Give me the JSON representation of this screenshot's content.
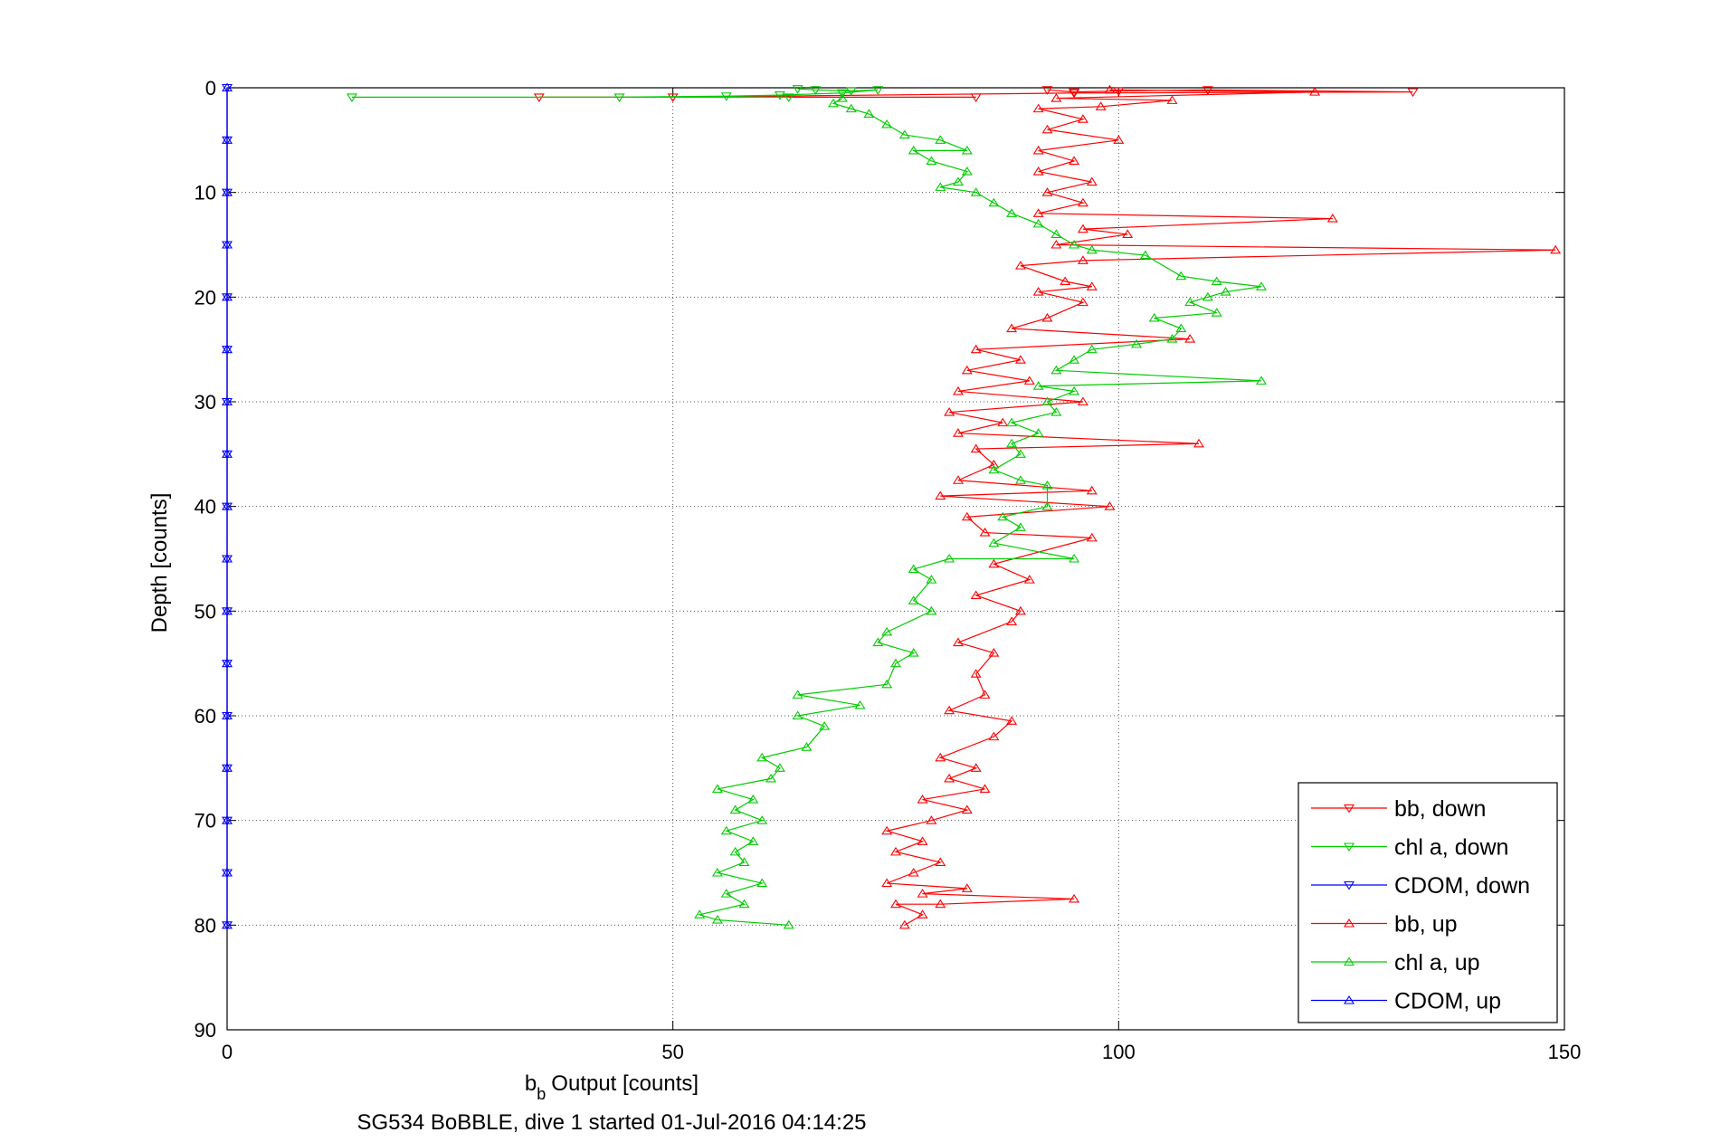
{
  "chart_data": {
    "type": "line",
    "xlabel": "Output [counts]",
    "xlabel_prefix": "b",
    "xlabel_subscript": "b",
    "ylabel": "Depth [counts]",
    "caption": "SG534 BoBBLE, dive 1 started 01-Jul-2016 04:14:25",
    "xlim": [
      0,
      150
    ],
    "ylim": [
      0,
      90
    ],
    "y_reversed": true,
    "grid": true,
    "legend_position": "bottom-right",
    "x_ticks": [
      0,
      50,
      100,
      150
    ],
    "y_ticks": [
      0,
      10,
      20,
      30,
      40,
      50,
      60,
      70,
      80,
      90
    ],
    "series": [
      {
        "name": "bb, down",
        "color": "#ff0000",
        "marker": "triangle-down",
        "points": [
          [
            92,
            0.2
          ],
          [
            95,
            0.4
          ],
          [
            100,
            0.3
          ],
          [
            110,
            0.2
          ],
          [
            133,
            0.4
          ],
          [
            95,
            0.5
          ],
          [
            50,
            0.9
          ],
          [
            35,
            0.9
          ],
          [
            84,
            0.9
          ]
        ]
      },
      {
        "name": "chl a, down",
        "color": "#00cc00",
        "marker": "triangle-down",
        "points": [
          [
            64,
            0.1
          ],
          [
            66,
            0.2
          ],
          [
            70,
            0.3
          ],
          [
            73,
            0.2
          ],
          [
            69,
            0.5
          ],
          [
            62,
            0.7
          ],
          [
            56,
            0.8
          ],
          [
            44,
            0.9
          ],
          [
            14,
            0.9
          ],
          [
            63,
            0.9
          ]
        ]
      },
      {
        "name": "CDOM, down",
        "color": "#0000ff",
        "marker": "triangle-down",
        "points": [
          [
            0,
            0.0
          ],
          [
            0,
            5
          ],
          [
            0,
            10
          ],
          [
            0,
            15
          ],
          [
            0,
            20
          ],
          [
            0,
            25
          ],
          [
            0,
            30
          ],
          [
            0,
            35
          ],
          [
            0,
            40
          ],
          [
            0,
            45
          ],
          [
            0,
            50
          ],
          [
            0,
            55
          ],
          [
            0,
            60
          ],
          [
            0,
            65
          ],
          [
            0,
            70
          ],
          [
            0,
            75
          ],
          [
            0,
            80
          ]
        ]
      },
      {
        "name": "bb, up",
        "color": "#ff0000",
        "marker": "triangle-up",
        "points": [
          [
            76,
            80
          ],
          [
            78,
            79
          ],
          [
            75,
            78
          ],
          [
            80,
            78
          ],
          [
            95,
            77.5
          ],
          [
            78,
            77
          ],
          [
            83,
            76.5
          ],
          [
            74,
            76
          ],
          [
            77,
            75
          ],
          [
            80,
            74
          ],
          [
            75,
            73
          ],
          [
            78,
            72
          ],
          [
            74,
            71
          ],
          [
            79,
            70
          ],
          [
            83,
            69
          ],
          [
            78,
            68
          ],
          [
            85,
            67
          ],
          [
            81,
            66
          ],
          [
            84,
            65
          ],
          [
            80,
            64
          ],
          [
            86,
            62
          ],
          [
            88,
            60.5
          ],
          [
            81,
            59.5
          ],
          [
            85,
            58
          ],
          [
            84,
            56
          ],
          [
            86,
            54
          ],
          [
            82,
            53
          ],
          [
            88,
            51
          ],
          [
            89,
            50
          ],
          [
            84,
            48.5
          ],
          [
            90,
            47
          ],
          [
            86,
            45.5
          ],
          [
            97,
            43
          ],
          [
            85,
            42.5
          ],
          [
            83,
            41
          ],
          [
            99,
            40
          ],
          [
            80,
            39
          ],
          [
            97,
            38.5
          ],
          [
            82,
            37.5
          ],
          [
            86,
            36
          ],
          [
            84,
            34.5
          ],
          [
            109,
            34
          ],
          [
            82,
            33
          ],
          [
            87,
            32
          ],
          [
            81,
            31
          ],
          [
            96,
            30
          ],
          [
            82,
            29
          ],
          [
            90,
            28
          ],
          [
            83,
            27
          ],
          [
            89,
            26
          ],
          [
            84,
            25
          ],
          [
            108,
            24
          ],
          [
            88,
            23
          ],
          [
            92,
            22
          ],
          [
            96,
            20.5
          ],
          [
            91,
            19.5
          ],
          [
            97,
            19
          ],
          [
            94,
            18.5
          ],
          [
            89,
            17
          ],
          [
            96,
            16.5
          ],
          [
            149,
            15.5
          ],
          [
            93,
            15
          ],
          [
            101,
            14
          ],
          [
            96,
            13.5
          ],
          [
            124,
            12.5
          ],
          [
            91,
            12
          ],
          [
            96,
            11
          ],
          [
            92,
            10
          ],
          [
            97,
            9
          ],
          [
            91,
            8
          ],
          [
            95,
            7
          ],
          [
            91,
            6
          ],
          [
            100,
            5
          ],
          [
            92,
            4
          ],
          [
            96,
            3
          ],
          [
            91,
            2
          ],
          [
            98,
            1.8
          ],
          [
            106,
            1.2
          ],
          [
            93,
            1
          ],
          [
            122,
            0.4
          ],
          [
            99,
            0.2
          ]
        ]
      },
      {
        "name": "chl a, up",
        "color": "#00cc00",
        "marker": "triangle-up",
        "points": [
          [
            63,
            80
          ],
          [
            55,
            79.5
          ],
          [
            53,
            79
          ],
          [
            58,
            78
          ],
          [
            56,
            77
          ],
          [
            60,
            76
          ],
          [
            55,
            75
          ],
          [
            58,
            74
          ],
          [
            57,
            73
          ],
          [
            59,
            72
          ],
          [
            56,
            71
          ],
          [
            60,
            70
          ],
          [
            57,
            69
          ],
          [
            59,
            68
          ],
          [
            55,
            67
          ],
          [
            61,
            66
          ],
          [
            62,
            65
          ],
          [
            60,
            64
          ],
          [
            65,
            63
          ],
          [
            67,
            61
          ],
          [
            64,
            60
          ],
          [
            71,
            59
          ],
          [
            64,
            58
          ],
          [
            74,
            57
          ],
          [
            75,
            55
          ],
          [
            77,
            54
          ],
          [
            73,
            53
          ],
          [
            74,
            52
          ],
          [
            79,
            50
          ],
          [
            77,
            49
          ],
          [
            79,
            47
          ],
          [
            77,
            46
          ],
          [
            81,
            45
          ],
          [
            95,
            45
          ],
          [
            86,
            43.5
          ],
          [
            89,
            42
          ],
          [
            87,
            41
          ],
          [
            92,
            40
          ],
          [
            92,
            38
          ],
          [
            89,
            37.5
          ],
          [
            86,
            36.5
          ],
          [
            89,
            35
          ],
          [
            88,
            34
          ],
          [
            91,
            33
          ],
          [
            88,
            32
          ],
          [
            93,
            31
          ],
          [
            92,
            30
          ],
          [
            95,
            29
          ],
          [
            91,
            28.5
          ],
          [
            116,
            28
          ],
          [
            93,
            27
          ],
          [
            95,
            26
          ],
          [
            97,
            25
          ],
          [
            102,
            24.5
          ],
          [
            106,
            24
          ],
          [
            107,
            23
          ],
          [
            104,
            22
          ],
          [
            111,
            21.5
          ],
          [
            108,
            20.5
          ],
          [
            110,
            20
          ],
          [
            112,
            19.5
          ],
          [
            116,
            19
          ],
          [
            111,
            18.5
          ],
          [
            107,
            18
          ],
          [
            103,
            16
          ],
          [
            97,
            15.5
          ],
          [
            95,
            15
          ],
          [
            93,
            14
          ],
          [
            91,
            13
          ],
          [
            88,
            12
          ],
          [
            86,
            11
          ],
          [
            84,
            10
          ],
          [
            80,
            9.5
          ],
          [
            82,
            9
          ],
          [
            83,
            8
          ],
          [
            79,
            7
          ],
          [
            77,
            6
          ],
          [
            83,
            6
          ],
          [
            80,
            5
          ],
          [
            76,
            4.5
          ],
          [
            74,
            3.5
          ],
          [
            72,
            2.5
          ],
          [
            70,
            2
          ],
          [
            68,
            1.5
          ],
          [
            69,
            1
          ]
        ]
      },
      {
        "name": "CDOM, up",
        "color": "#0000ff",
        "marker": "triangle-up",
        "points": [
          [
            0,
            80
          ],
          [
            0,
            75
          ],
          [
            0,
            70
          ],
          [
            0,
            65
          ],
          [
            0,
            60
          ],
          [
            0,
            55
          ],
          [
            0,
            50
          ],
          [
            0,
            45
          ],
          [
            0,
            40
          ],
          [
            0,
            35
          ],
          [
            0,
            30
          ],
          [
            0,
            25
          ],
          [
            0,
            20
          ],
          [
            0,
            15
          ],
          [
            0,
            10
          ],
          [
            0,
            5
          ],
          [
            0,
            0
          ]
        ]
      }
    ]
  }
}
